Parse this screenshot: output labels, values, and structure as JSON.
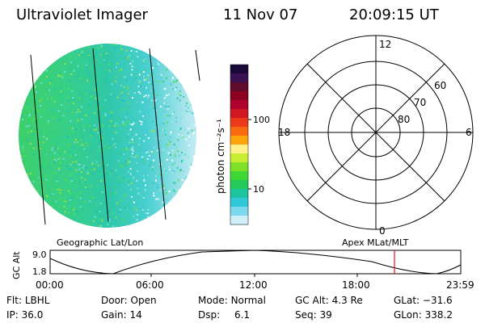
{
  "header": {
    "title": "Ultraviolet Imager",
    "date": "11 Nov 07",
    "time": "20:09:15 UT"
  },
  "colorbar": {
    "tick_labels": [
      "100",
      "10"
    ],
    "unit_label": "photon cm⁻²s⁻¹",
    "colors_top_to_bottom": [
      "#1a0a3a",
      "#3a1252",
      "#600a2c",
      "#8c0020",
      "#b00030",
      "#d01820",
      "#ea3a1a",
      "#f86a10",
      "#fca50a",
      "#fff08a",
      "#c8ee30",
      "#7ee028",
      "#3cd834",
      "#24ca5a",
      "#1cc4a0",
      "#30c8d8",
      "#7cd8ec",
      "#d0eef8"
    ]
  },
  "polar": {
    "mlt_labels": {
      "top": "12",
      "left": "18",
      "right": "6",
      "bottom": "0"
    },
    "lat_labels": [
      "60",
      "70",
      "80"
    ]
  },
  "timeline": {
    "ylabel": "GC Alt",
    "y_ticks": [
      "9.0",
      "1.8"
    ],
    "left_label": "Geographic Lat/Lon",
    "right_label": "Apex MLat/MLT",
    "x_ticks": [
      "00:00",
      "06:00",
      "12:00",
      "18:00",
      "23:59"
    ],
    "marker_color": "#e01010"
  },
  "status": {
    "filter": {
      "label": "Flt:",
      "value": "LBHL"
    },
    "ip": {
      "label": "IP:",
      "value": "36.0"
    },
    "door": {
      "label": "Door:",
      "value": "Open"
    },
    "gain": {
      "label": "Gain:",
      "value": "14"
    },
    "mode": {
      "label": "Mode:",
      "value": "Normal"
    },
    "dsp": {
      "label": "Dsp:",
      "value": "6.1"
    },
    "gc_alt": {
      "label": "GC Alt:",
      "value": "4.3 Re"
    },
    "seq": {
      "label": "Seq:",
      "value": "39"
    },
    "glat": {
      "label": "GLat:",
      "value": "−31.6"
    },
    "glon": {
      "label": "GLon:",
      "value": "338.2"
    }
  },
  "image_colors": {
    "base": "#35d49a",
    "left": "#4cd95a",
    "mid": "#2cc8b0",
    "right": "#b8e8f0"
  }
}
